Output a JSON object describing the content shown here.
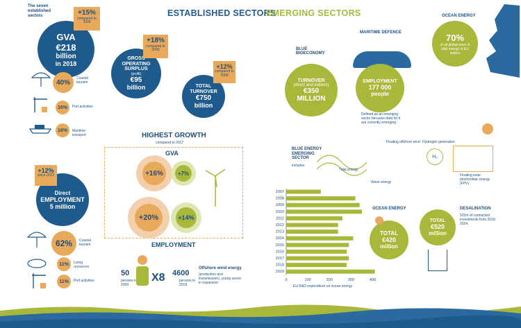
{
  "header": {
    "established": "ESTABLISHED SECTORS",
    "emerging": "EMERGING SECTORS"
  },
  "colors": {
    "navy": "#1f5a8c",
    "green": "#a7b83a",
    "orange": "#e8a95a",
    "wave": "#2b6aa0"
  },
  "established": {
    "intro": [
      "The seven",
      "established",
      "sectors"
    ],
    "gva": {
      "label": "GVA",
      "value": "€218",
      "unit": "billion",
      "year": "in 2018",
      "change": "+15%",
      "note": "compared to 2009"
    },
    "gross": {
      "label": [
        "GROSS",
        "OPERATING",
        "SURPLUS"
      ],
      "sub": "(profit)",
      "value": "€95",
      "unit": "billion",
      "change": "+18%",
      "note": "compared to 2009"
    },
    "turnover": {
      "label": [
        "TOTAL",
        "TURNOVER"
      ],
      "value": "€750",
      "unit": "billion",
      "change": "+12%",
      "note": "compared to 2009"
    },
    "gva_shares": [
      {
        "pct": "40%",
        "label": "Coastal tourism"
      },
      {
        "pct": "16%",
        "label": "Port activities"
      },
      {
        "pct": "16%",
        "label": "Maritime transport"
      }
    ],
    "employment": {
      "label": "Direct",
      "title": "EMPLOYMENT",
      "value": "5 million",
      "change": "+12%",
      "note": "since 2012"
    },
    "emp_shares": [
      {
        "pct": "62%",
        "label": "Coastal tourism"
      },
      {
        "pct": "11%",
        "label": "Living resources"
      },
      {
        "pct": "11%",
        "label": "Port activities"
      }
    ],
    "growth": {
      "title": "HIGHEST GROWTH",
      "sub": "compared to 2017",
      "gva": "GVA",
      "employment": "EMPLOYMENT",
      "gva_values": [
        "+16%",
        "+7%"
      ],
      "emp_values": [
        "+20%",
        "+14%"
      ]
    },
    "wind": {
      "left_n": "50",
      "left_l": "persons in 2009",
      "mult": "X8",
      "right_n": "4600",
      "right_l": "persons in 2018",
      "title": "Offshore wind energy",
      "desc": "(production and transmission), young sector in expansion"
    }
  },
  "emerging": {
    "blue_bio": {
      "title": [
        "BLUE",
        "BIOECONOMY"
      ],
      "label": "TURNOVER",
      "sub": "(direct and indirect)",
      "value": "€350",
      "unit": "MILLION"
    },
    "defence": {
      "title": "MARITIME DEFENCE",
      "label": "EMPLOYMENT",
      "value": "177 000",
      "unit": "people",
      "note": "Defined as an emerging sector because data for it are currently emerging"
    },
    "ocean_energy": {
      "title": "OCEAN ENERGY",
      "value": "70%",
      "desc": "of all global wave & tidal energy in EU waters"
    },
    "blue_energy": {
      "title": [
        "BLUE ENERGY",
        "EMERGING",
        "SECTOR"
      ],
      "includes": "includes",
      "items": [
        "Floating offshore wind",
        "Hydrogen generation",
        "Tidal energy",
        "Wave energy",
        "Floating solar photovoltaic energy (FPV)"
      ],
      "h2": "H₂"
    },
    "ocean_energy2": {
      "title": "OCEAN ENERGY",
      "label": "TOTAL",
      "value": "€420",
      "unit": "million"
    },
    "desal": {
      "title": "DESALINATION",
      "label": "TOTAL",
      "value": "€520",
      "unit": "million",
      "desc": "520m of contracted investments from 2019-2024."
    }
  },
  "chart_data": {
    "type": "bar",
    "orientation": "horizontal",
    "title": "EU R&D expenditure on ocean energy",
    "categories": [
      "2007",
      "2008",
      "2009",
      "2010",
      "2011",
      "2012",
      "2013",
      "2014",
      "2015",
      "2016",
      "2017",
      "2018",
      "2019"
    ],
    "values": [
      160,
      320,
      340,
      350,
      260,
      240,
      240,
      310,
      290,
      280,
      290,
      280,
      410
    ],
    "xlim": [
      0,
      450
    ],
    "xticks": [
      "0",
      "100",
      "200",
      "300",
      "400"
    ]
  }
}
